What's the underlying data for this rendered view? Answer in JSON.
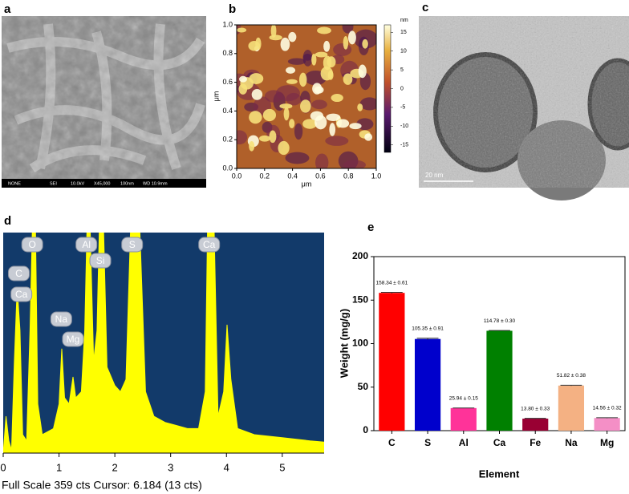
{
  "panel_labels": [
    "a",
    "b",
    "c",
    "d",
    "e"
  ],
  "sem_footer": [
    "NONE",
    "SEI",
    "10.0kV",
    "X45,000",
    "100nm",
    "WD 10.9mm"
  ],
  "tem_scale": "20 nm",
  "afm": {
    "xlabel": "μm",
    "ylabel": "μm",
    "xlim": [
      0,
      1
    ],
    "ylim": [
      0,
      1
    ],
    "xticks": [
      {
        "value": 0,
        "label": "0.0"
      },
      {
        "value": 0.2,
        "label": "0.2"
      },
      {
        "value": 0.4,
        "label": "0.4"
      },
      {
        "value": 0.6,
        "label": "0.6"
      },
      {
        "value": 0.8,
        "label": "0.8"
      },
      {
        "value": 1,
        "label": "1.0"
      }
    ],
    "yticks": [
      {
        "value": 0,
        "label": "0.0"
      },
      {
        "value": 0.2,
        "label": "0.2"
      },
      {
        "value": 0.4,
        "label": "0.4"
      },
      {
        "value": 0.6,
        "label": "0.6"
      },
      {
        "value": 0.8,
        "label": "0.8"
      },
      {
        "value": 1,
        "label": "1.0"
      }
    ],
    "colorbar": {
      "unit": "nm",
      "lim": [
        -17,
        17
      ],
      "ticks": [
        15,
        10,
        5,
        0,
        -5,
        -10,
        -15
      ]
    }
  },
  "eds": {
    "xlim": [
      0,
      5.75
    ],
    "ylim": [
      0,
      359
    ],
    "xticks": [
      0,
      1,
      2,
      3,
      4,
      5
    ],
    "footer": "Full Scale 359 cts Cursor: 6.184  (13 cts)",
    "peaks": [
      {
        "label": "O",
        "energy": 0.52
      },
      {
        "label": "C",
        "energy": 0.28
      },
      {
        "label": "Ca",
        "energy": 0.34
      },
      {
        "label": "Al",
        "energy": 1.49
      },
      {
        "label": "Si",
        "energy": 1.74
      },
      {
        "label": "S",
        "energy": 2.31
      },
      {
        "label": "Ca",
        "energy": 3.69
      },
      {
        "label": "Na",
        "energy": 1.04
      },
      {
        "label": "Mg",
        "energy": 1.25
      }
    ],
    "x": [
      0.0,
      0.05,
      0.1,
      0.15,
      0.2,
      0.25,
      0.3,
      0.35,
      0.42,
      0.48,
      0.52,
      0.58,
      0.62,
      0.7,
      0.8,
      0.9,
      1.0,
      1.05,
      1.1,
      1.18,
      1.25,
      1.3,
      1.4,
      1.46,
      1.5,
      1.56,
      1.62,
      1.68,
      1.72,
      1.8,
      1.86,
      2.0,
      2.1,
      2.2,
      2.28,
      2.45,
      2.55,
      2.7,
      2.9,
      3.1,
      3.3,
      3.5,
      3.62,
      3.66,
      3.78,
      3.85,
      3.95,
      4.01,
      4.08,
      4.2,
      4.5,
      5.0,
      5.5,
      5.75
    ],
    "y": [
      0,
      60,
      20,
      5,
      150,
      270,
      200,
      30,
      20,
      200,
      359,
      359,
      80,
      30,
      35,
      40,
      80,
      170,
      90,
      80,
      124,
      90,
      100,
      200,
      359,
      359,
      150,
      200,
      359,
      359,
      140,
      110,
      100,
      120,
      359,
      359,
      100,
      60,
      50,
      45,
      40,
      40,
      100,
      359,
      359,
      60,
      100,
      209,
      120,
      40,
      30,
      25,
      20,
      18
    ]
  },
  "chart_data": {
    "type": "bar",
    "xlabel": "Element",
    "ylabel": "Weight (mg/g)",
    "categories": [
      "C",
      "S",
      "Al",
      "Ca",
      "Fe",
      "Na",
      "Mg"
    ],
    "values": [
      158.34,
      105.35,
      25.94,
      114.78,
      13.8,
      51.82,
      14.56
    ],
    "errors": [
      0.61,
      0.91,
      0.15,
      0.3,
      0.33,
      0.38,
      0.32
    ],
    "value_labels": [
      "158.34 ± 0.61",
      "105.35 ± 0.91",
      "25.94 ± 0.15",
      "114.78 ± 0.30",
      "13.80 ± 0.33",
      "51.82 ± 0.38",
      "14.56 ± 0.32"
    ],
    "colors": [
      "#ff0000",
      "#0000cc",
      "#ff3399",
      "#008000",
      "#990033",
      "#f4b183",
      "#f48fc6"
    ],
    "ylim": [
      0,
      200
    ],
    "yticks": [
      0,
      50,
      100,
      150,
      200
    ]
  }
}
